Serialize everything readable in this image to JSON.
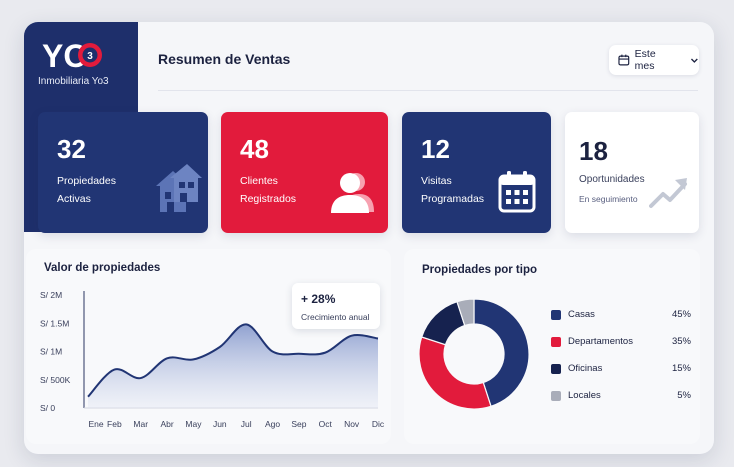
{
  "brand": {
    "letters": "YO",
    "badge": "3",
    "caption": "Inmobiliaria Yo3"
  },
  "header": {
    "title": "Resumen de Ventas",
    "period_label": "Este mes"
  },
  "cards": [
    {
      "value": "32",
      "line1": "Propiedades",
      "line2": "Activas",
      "icon": "house-icon"
    },
    {
      "value": "48",
      "line1": "Clientes",
      "line2": "Registrados",
      "icon": "user-icon"
    },
    {
      "value": "12",
      "line1": "Visitas",
      "line2": "Programadas",
      "icon": "calendar-icon"
    },
    {
      "value": "18",
      "line1": "Oportunidades",
      "line2": "En seguimiento",
      "icon": "trend-up-icon"
    }
  ],
  "growth": {
    "value": "+ 28%",
    "label": "Crecimiento anual"
  },
  "colors": {
    "navy": "#213574",
    "red": "#e21b3c",
    "dark": "#16224f",
    "gray": "#a9adb9"
  },
  "chart_data": [
    {
      "type": "area",
      "title": "Valor de propiedades",
      "categories": [
        "Ene",
        "Feb",
        "Mar",
        "Abr",
        "May",
        "Jun",
        "Jul",
        "Ago",
        "Sep",
        "Oct",
        "Nov",
        "Dic"
      ],
      "series": [
        {
          "values": [
            0.2,
            0.68,
            0.53,
            0.88,
            0.86,
            1.08,
            1.48,
            1.0,
            0.96,
            0.98,
            1.28,
            1.23
          ]
        }
      ],
      "yticks": [
        "S/ 0",
        "S/ 500K",
        "S/ 1M",
        "S/ 1.5M",
        "S/ 2M"
      ],
      "ylim": [
        0,
        2
      ],
      "grid": false
    },
    {
      "type": "pie",
      "title": "Propiedades por tipo",
      "categories": [
        "Casas",
        "Departamentos",
        "Oficinas",
        "Locales"
      ],
      "values": [
        45,
        35,
        15,
        5
      ],
      "labels": [
        "45%",
        "35%",
        "15%",
        "5%"
      ],
      "colors": [
        "#213574",
        "#e21b3c",
        "#16224f",
        "#a9adb9"
      ],
      "legend": "right"
    }
  ]
}
